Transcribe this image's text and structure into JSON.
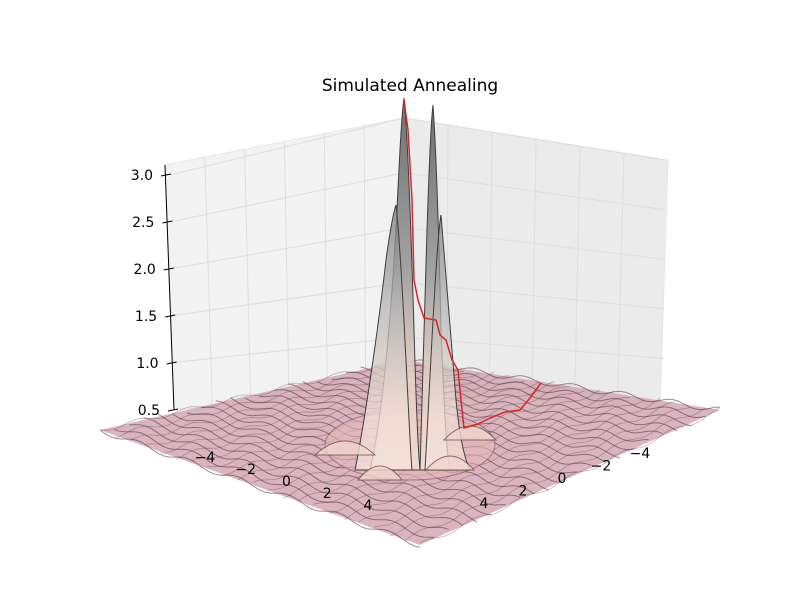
{
  "chart_data": {
    "type": "surface3d",
    "title": "Simulated Annealing",
    "xlabel": "",
    "ylabel": "",
    "zlabel": "",
    "x_ticks": [
      "−4",
      "−2",
      "0",
      "2",
      "4"
    ],
    "y_ticks": [
      "4",
      "2",
      "0",
      "−2",
      "−4"
    ],
    "z_ticks": [
      "0.5",
      "1.0",
      "1.5",
      "2.0",
      "2.5",
      "3.0"
    ],
    "xlim": [
      -5,
      5
    ],
    "ylim": [
      -5,
      5
    ],
    "zlim": [
      0.5,
      3.1
    ],
    "grid": true,
    "surface": {
      "description": "radially symmetric oscillating surface with two central peaks near z=3.1",
      "peaks": [
        {
          "x": -0.3,
          "y": 0.4,
          "z": 3.1
        },
        {
          "x": 0.4,
          "y": -0.3,
          "z": 3.0
        }
      ],
      "base_level": 0.5,
      "colors": {
        "low": "#c98a9c",
        "mid": "#f3d9cf",
        "high": "#6e6e6e"
      }
    },
    "path": {
      "color": "#d62728",
      "points": [
        {
          "x": 4.8,
          "y": -1.0,
          "z": 0.5
        },
        {
          "x": 3.6,
          "y": -0.6,
          "z": 0.55
        },
        {
          "x": 2.6,
          "y": -0.3,
          "z": 0.6
        },
        {
          "x": 1.8,
          "y": -0.1,
          "z": 0.7
        },
        {
          "x": 1.2,
          "y": 0.0,
          "z": 1.0
        },
        {
          "x": 0.7,
          "y": 0.1,
          "z": 1.5
        },
        {
          "x": 0.4,
          "y": 0.2,
          "z": 1.7
        },
        {
          "x": 0.2,
          "y": 0.3,
          "z": 2.3
        },
        {
          "x": 0.0,
          "y": 0.35,
          "z": 3.0
        }
      ]
    }
  }
}
